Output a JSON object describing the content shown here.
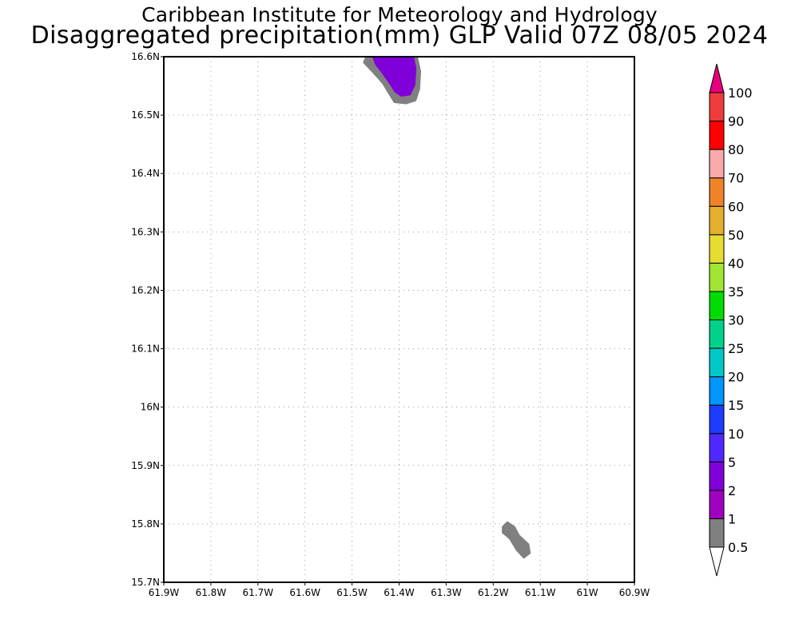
{
  "title_line1": "Caribbean Institute for Meteorology and Hydrology",
  "title_line2": "Disaggregated precipitation(mm) GLP Valid 07Z 08/05 2024",
  "map": {
    "lon_range": [
      -61.9,
      -60.9
    ],
    "lat_range": [
      15.7,
      16.6
    ],
    "lon_ticks": [
      {
        "value": -61.9,
        "label": "61.9W"
      },
      {
        "value": -61.8,
        "label": "61.8W"
      },
      {
        "value": -61.7,
        "label": "61.7W"
      },
      {
        "value": -61.6,
        "label": "61.6W"
      },
      {
        "value": -61.5,
        "label": "61.5W"
      },
      {
        "value": -61.4,
        "label": "61.4W"
      },
      {
        "value": -61.3,
        "label": "61.3W"
      },
      {
        "value": -61.2,
        "label": "61.2W"
      },
      {
        "value": -61.1,
        "label": "61.1W"
      },
      {
        "value": -61.0,
        "label": "61W"
      },
      {
        "value": -60.9,
        "label": "60.9W"
      }
    ],
    "lat_ticks": [
      {
        "value": 16.6,
        "label": "16.6N"
      },
      {
        "value": 16.5,
        "label": "16.5N"
      },
      {
        "value": 16.4,
        "label": "16.4N"
      },
      {
        "value": 16.3,
        "label": "16.3N"
      },
      {
        "value": 16.2,
        "label": "16.2N"
      },
      {
        "value": 16.1,
        "label": "16.1N"
      },
      {
        "value": 16.0,
        "label": "16N"
      },
      {
        "value": 15.9,
        "label": "15.9N"
      },
      {
        "value": 15.8,
        "label": "15.8N"
      },
      {
        "value": 15.7,
        "label": "15.7N"
      }
    ],
    "grid": "dotted",
    "precip_areas": [
      {
        "name": "north-precip-outer",
        "class_mm": "0.5-1",
        "color": "#808080",
        "lonlat": [
          [
            -61.47,
            16.6
          ],
          [
            -61.362,
            16.6
          ],
          [
            -61.355,
            16.575
          ],
          [
            -61.357,
            16.545
          ],
          [
            -61.365,
            16.525
          ],
          [
            -61.385,
            16.52
          ],
          [
            -61.41,
            16.522
          ],
          [
            -61.42,
            16.535
          ],
          [
            -61.435,
            16.555
          ],
          [
            -61.455,
            16.573
          ],
          [
            -61.475,
            16.59
          ]
        ]
      },
      {
        "name": "north-precip-inner",
        "class_mm": "2-5",
        "color": "#7f00d8",
        "lonlat": [
          [
            -61.455,
            16.6
          ],
          [
            -61.37,
            16.6
          ],
          [
            -61.365,
            16.58
          ],
          [
            -61.367,
            16.552
          ],
          [
            -61.377,
            16.535
          ],
          [
            -61.395,
            16.533
          ],
          [
            -61.408,
            16.54
          ],
          [
            -61.42,
            16.555
          ],
          [
            -61.435,
            16.572
          ],
          [
            -61.45,
            16.588
          ]
        ]
      },
      {
        "name": "south-precip",
        "class_mm": "0.5-1",
        "color": "#808080",
        "lonlat": [
          [
            -61.18,
            15.795
          ],
          [
            -61.17,
            15.803
          ],
          [
            -61.155,
            15.795
          ],
          [
            -61.145,
            15.78
          ],
          [
            -61.125,
            15.765
          ],
          [
            -61.122,
            15.75
          ],
          [
            -61.135,
            15.742
          ],
          [
            -61.15,
            15.755
          ],
          [
            -61.165,
            15.775
          ],
          [
            -61.18,
            15.785
          ]
        ]
      }
    ]
  },
  "colorbar": {
    "levels": [
      "0.5",
      "1",
      "2",
      "5",
      "10",
      "15",
      "20",
      "25",
      "30",
      "35",
      "40",
      "50",
      "60",
      "70",
      "80",
      "90",
      "100"
    ],
    "colors": [
      "#808080",
      "#a000c0",
      "#7f00d8",
      "#5028ff",
      "#1e3cff",
      "#0096ff",
      "#00c8c8",
      "#00d28c",
      "#00dc00",
      "#a0e632",
      "#e6dc32",
      "#e6af2d",
      "#f08228",
      "#faaaaa",
      "#ff0000",
      "#f03c3c",
      "#e6007d"
    ]
  }
}
